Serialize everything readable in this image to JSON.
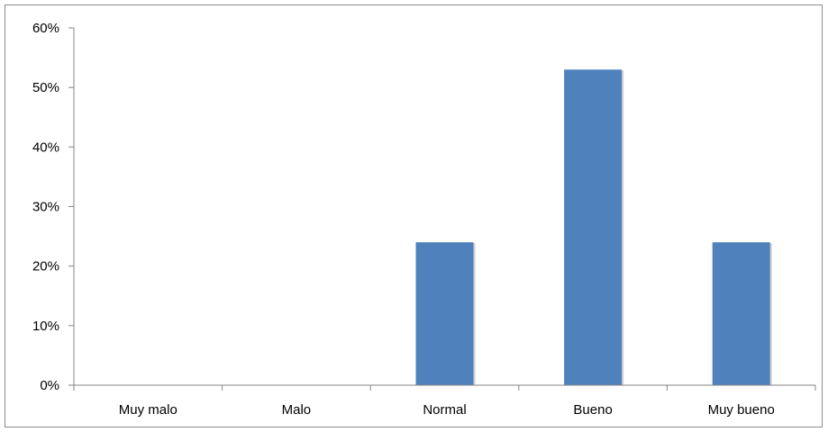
{
  "chart_data": {
    "type": "bar",
    "categories": [
      "Muy malo",
      "Malo",
      "Normal",
      "Bueno",
      "Muy bueno"
    ],
    "values": [
      0,
      0,
      24,
      53,
      24
    ],
    "value_unit": "%",
    "ylim": [
      0,
      60
    ],
    "yticks": [
      0,
      10,
      20,
      30,
      40,
      50,
      60
    ],
    "ytick_labels": [
      "0%",
      "10%",
      "20%",
      "30%",
      "40%",
      "50%",
      "60%"
    ],
    "title": "",
    "xlabel": "",
    "ylabel": "",
    "grid": false,
    "legend": "none",
    "bar_color": "#4f81bd"
  }
}
